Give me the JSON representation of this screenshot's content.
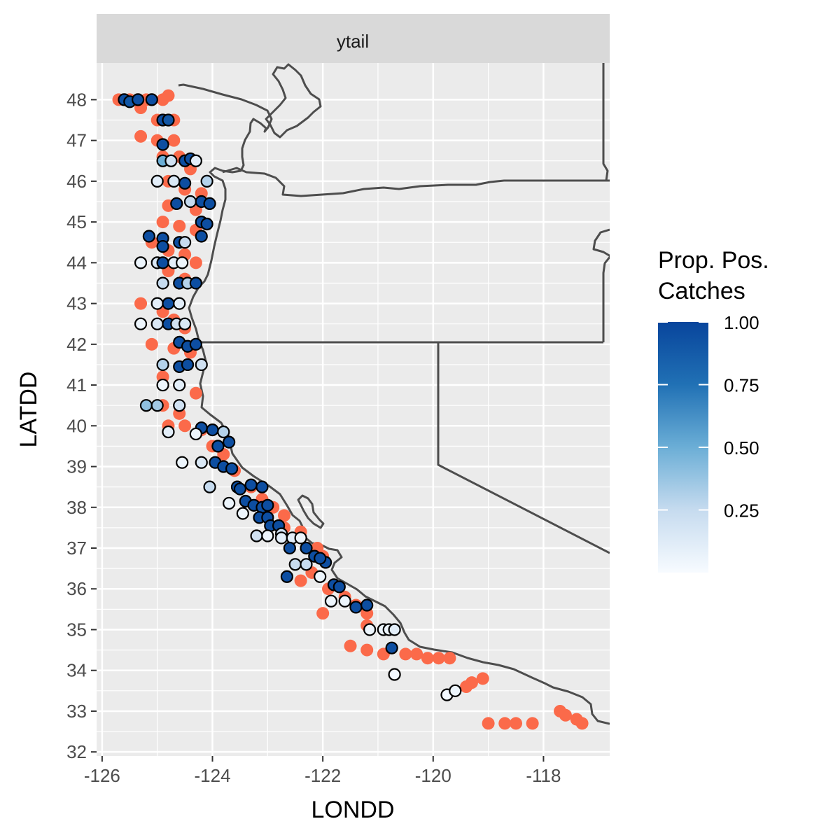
{
  "chart_data": {
    "type": "scatter",
    "facet_label": "ytail",
    "xlabel": "LONDD",
    "ylabel": "LATDD",
    "xlim": [
      -126.1,
      -116.8
    ],
    "ylim": [
      31.9,
      48.9
    ],
    "x_ticks": [
      -126,
      -124,
      -122,
      -120,
      -118
    ],
    "x_tick_labels": [
      "-126",
      "-124",
      "-122",
      "-120",
      "-118"
    ],
    "y_ticks": [
      32,
      33,
      34,
      35,
      36,
      37,
      38,
      39,
      40,
      41,
      42,
      43,
      44,
      45,
      46,
      47,
      48
    ],
    "y_tick_labels": [
      "32",
      "33",
      "34",
      "35",
      "36",
      "37",
      "38",
      "39",
      "40",
      "41",
      "42",
      "43",
      "44",
      "45",
      "46",
      "47",
      "48"
    ],
    "grid": true,
    "legend": {
      "title_line1": "Prop. Pos.",
      "title_line2": "Catches",
      "placement": "right",
      "ticks": [
        1.0,
        0.75,
        0.5,
        0.25
      ],
      "tick_labels": [
        "1.00",
        "0.75",
        "0.50",
        "0.25"
      ],
      "range": [
        0,
        1
      ]
    },
    "colors": {
      "zero_catch": "#fb6a4a",
      "low": "#f7fbff",
      "high": "#08459c",
      "border": "#444444",
      "panel": "#ebebeb"
    },
    "zero_catch_points": [
      [
        -125.7,
        48.0
      ],
      [
        -125.5,
        48.0
      ],
      [
        -125.2,
        48.0
      ],
      [
        -124.9,
        48.0
      ],
      [
        -124.8,
        48.1
      ],
      [
        -125.3,
        47.8
      ],
      [
        -125.0,
        47.5
      ],
      [
        -124.7,
        47.5
      ],
      [
        -125.3,
        47.1
      ],
      [
        -125.0,
        47.0
      ],
      [
        -124.7,
        47.0
      ],
      [
        -124.9,
        46.6
      ],
      [
        -124.6,
        46.6
      ],
      [
        -124.4,
        46.3
      ],
      [
        -124.8,
        46.0
      ],
      [
        -124.5,
        45.8
      ],
      [
        -124.2,
        45.7
      ],
      [
        -124.8,
        45.4
      ],
      [
        -124.3,
        45.3
      ],
      [
        -124.9,
        45.0
      ],
      [
        -124.6,
        44.9
      ],
      [
        -124.3,
        44.8
      ],
      [
        -125.1,
        44.5
      ],
      [
        -124.8,
        44.3
      ],
      [
        -124.5,
        44.2
      ],
      [
        -124.3,
        44.0
      ],
      [
        -124.8,
        43.8
      ],
      [
        -124.5,
        43.6
      ],
      [
        -125.3,
        43.0
      ],
      [
        -124.9,
        42.8
      ],
      [
        -124.7,
        42.6
      ],
      [
        -124.5,
        42.4
      ],
      [
        -125.1,
        42.0
      ],
      [
        -124.7,
        41.9
      ],
      [
        -124.4,
        41.8
      ],
      [
        -124.9,
        41.2
      ],
      [
        -124.6,
        41.0
      ],
      [
        -124.3,
        40.8
      ],
      [
        -124.9,
        40.5
      ],
      [
        -124.6,
        40.3
      ],
      [
        -124.8,
        40.0
      ],
      [
        -124.5,
        40.0
      ],
      [
        -124.2,
        39.9
      ],
      [
        -124.0,
        39.5
      ],
      [
        -123.8,
        39.3
      ],
      [
        -123.6,
        38.9
      ],
      [
        -123.3,
        38.5
      ],
      [
        -123.1,
        38.2
      ],
      [
        -122.9,
        38.0
      ],
      [
        -122.7,
        37.8
      ],
      [
        -122.7,
        37.5
      ],
      [
        -122.4,
        37.4
      ],
      [
        -122.1,
        37.0
      ],
      [
        -122.0,
        36.8
      ],
      [
        -122.2,
        36.4
      ],
      [
        -122.4,
        36.2
      ],
      [
        -121.9,
        36.0
      ],
      [
        -121.6,
        35.8
      ],
      [
        -121.4,
        35.6
      ],
      [
        -121.2,
        35.4
      ],
      [
        -122.0,
        35.4
      ],
      [
        -121.2,
        35.1
      ],
      [
        -121.5,
        34.6
      ],
      [
        -121.2,
        34.5
      ],
      [
        -120.9,
        34.4
      ],
      [
        -120.5,
        34.4
      ],
      [
        -120.3,
        34.4
      ],
      [
        -120.1,
        34.3
      ],
      [
        -119.9,
        34.3
      ],
      [
        -119.7,
        34.3
      ],
      [
        -119.4,
        33.6
      ],
      [
        -119.3,
        33.7
      ],
      [
        -119.1,
        33.8
      ],
      [
        -119.0,
        32.7
      ],
      [
        -118.7,
        32.7
      ],
      [
        -118.5,
        32.7
      ],
      [
        -118.2,
        32.7
      ],
      [
        -117.7,
        33.0
      ],
      [
        -117.6,
        32.9
      ],
      [
        -117.4,
        32.8
      ],
      [
        -117.3,
        32.7
      ]
    ],
    "positive_points": [
      [
        -125.6,
        48.0,
        0.95
      ],
      [
        -125.5,
        47.95,
        0.9
      ],
      [
        -125.35,
        48.0,
        0.95
      ],
      [
        -125.1,
        48.0,
        0.95
      ],
      [
        -124.9,
        47.5,
        0.95
      ],
      [
        -124.8,
        47.5,
        0.9
      ],
      [
        -124.9,
        46.9,
        0.95
      ],
      [
        -124.9,
        46.5,
        0.5
      ],
      [
        -124.75,
        46.5,
        0.2
      ],
      [
        -124.5,
        46.5,
        0.95
      ],
      [
        -124.4,
        46.55,
        0.95
      ],
      [
        -124.3,
        46.5,
        0.1
      ],
      [
        -125.0,
        46.0,
        0.1
      ],
      [
        -124.7,
        46.0,
        0.15
      ],
      [
        -124.5,
        45.95,
        0.95
      ],
      [
        -124.1,
        46.0,
        0.3
      ],
      [
        -124.4,
        45.5,
        0.25
      ],
      [
        -124.2,
        45.5,
        0.95
      ],
      [
        -124.65,
        45.45,
        0.95
      ],
      [
        -124.05,
        45.45,
        0.95
      ],
      [
        -124.2,
        45.0,
        0.95
      ],
      [
        -124.1,
        44.95,
        0.95
      ],
      [
        -125.15,
        44.65,
        0.95
      ],
      [
        -124.9,
        44.6,
        0.95
      ],
      [
        -124.9,
        44.4,
        0.95
      ],
      [
        -124.6,
        44.5,
        0.95
      ],
      [
        -124.5,
        44.5,
        0.25
      ],
      [
        -124.2,
        44.65,
        0.95
      ],
      [
        -125.3,
        44.0,
        0.05
      ],
      [
        -125.0,
        44.0,
        0.15
      ],
      [
        -124.9,
        44.0,
        0.95
      ],
      [
        -124.7,
        44.0,
        0.1
      ],
      [
        -124.55,
        44.0,
        0.05
      ],
      [
        -124.9,
        43.5,
        0.25
      ],
      [
        -124.6,
        43.5,
        0.95
      ],
      [
        -124.45,
        43.5,
        0.3
      ],
      [
        -124.3,
        43.5,
        0.95
      ],
      [
        -125.0,
        43.0,
        0.1
      ],
      [
        -124.8,
        43.0,
        0.95
      ],
      [
        -124.6,
        43.0,
        0.1
      ],
      [
        -125.3,
        42.5,
        0.05
      ],
      [
        -125.0,
        42.5,
        0.15
      ],
      [
        -124.8,
        42.5,
        0.95
      ],
      [
        -124.65,
        42.5,
        0.2
      ],
      [
        -124.5,
        42.5,
        0.15
      ],
      [
        -124.6,
        42.05,
        0.95
      ],
      [
        -124.45,
        41.95,
        0.95
      ],
      [
        -124.3,
        42.0,
        0.95
      ],
      [
        -124.9,
        41.5,
        0.3
      ],
      [
        -124.6,
        41.45,
        0.95
      ],
      [
        -124.45,
        41.5,
        0.95
      ],
      [
        -124.2,
        41.5,
        0.2
      ],
      [
        -124.9,
        41.0,
        0.05
      ],
      [
        -124.6,
        41.0,
        0.1
      ],
      [
        -125.2,
        40.5,
        0.4
      ],
      [
        -125.0,
        40.5,
        0.35
      ],
      [
        -124.6,
        40.5,
        0.2
      ],
      [
        -124.0,
        39.9,
        0.95
      ],
      [
        -124.2,
        39.95,
        0.95
      ],
      [
        -123.8,
        39.85,
        0.3
      ],
      [
        -124.8,
        39.85,
        0.1
      ],
      [
        -124.3,
        39.8,
        0.05
      ],
      [
        -123.9,
        39.5,
        0.95
      ],
      [
        -123.7,
        39.6,
        0.95
      ],
      [
        -124.55,
        39.1,
        0.05
      ],
      [
        -124.2,
        39.1,
        0.15
      ],
      [
        -123.95,
        39.1,
        0.95
      ],
      [
        -123.8,
        39.0,
        0.95
      ],
      [
        -123.65,
        38.95,
        0.95
      ],
      [
        -124.05,
        38.5,
        0.25
      ],
      [
        -123.55,
        38.5,
        0.95
      ],
      [
        -123.3,
        38.55,
        0.95
      ],
      [
        -123.5,
        38.45,
        0.95
      ],
      [
        -123.1,
        38.5,
        0.95
      ],
      [
        -123.7,
        38.1,
        0.05
      ],
      [
        -123.4,
        38.15,
        0.95
      ],
      [
        -123.25,
        38.05,
        0.95
      ],
      [
        -123.1,
        38.0,
        0.95
      ],
      [
        -123.0,
        38.05,
        0.95
      ],
      [
        -123.45,
        37.85,
        0.05
      ],
      [
        -123.15,
        37.75,
        0.95
      ],
      [
        -123.0,
        37.75,
        0.95
      ],
      [
        -122.95,
        37.55,
        0.95
      ],
      [
        -122.8,
        37.55,
        0.95
      ],
      [
        -122.75,
        37.35,
        0.2
      ],
      [
        -123.2,
        37.3,
        0.2
      ],
      [
        -123.0,
        37.3,
        0.05
      ],
      [
        -122.75,
        37.25,
        0.1
      ],
      [
        -122.55,
        37.25,
        0.1
      ],
      [
        -122.4,
        37.25,
        0.05
      ],
      [
        -122.6,
        37.0,
        0.95
      ],
      [
        -122.3,
        37.0,
        0.95
      ],
      [
        -122.15,
        36.8,
        0.95
      ],
      [
        -121.95,
        36.65,
        0.95
      ],
      [
        -122.05,
        36.75,
        0.95
      ],
      [
        -122.5,
        36.6,
        0.25
      ],
      [
        -122.3,
        36.6,
        0.25
      ],
      [
        -122.65,
        36.3,
        0.95
      ],
      [
        -122.05,
        36.3,
        0.05
      ],
      [
        -121.8,
        36.1,
        0.95
      ],
      [
        -121.7,
        36.05,
        0.95
      ],
      [
        -121.85,
        35.7,
        0.05
      ],
      [
        -121.6,
        35.7,
        0.05
      ],
      [
        -121.4,
        35.55,
        0.95
      ],
      [
        -121.2,
        35.6,
        0.95
      ],
      [
        -121.15,
        35.0,
        0.05
      ],
      [
        -120.9,
        35.0,
        0.05
      ],
      [
        -120.8,
        35.0,
        0.05
      ],
      [
        -120.7,
        35.0,
        0.1
      ],
      [
        -120.75,
        34.55,
        0.95
      ],
      [
        -120.7,
        33.9,
        0.02
      ],
      [
        -119.75,
        33.4,
        0.02
      ],
      [
        -119.6,
        33.5,
        0.05
      ]
    ]
  }
}
